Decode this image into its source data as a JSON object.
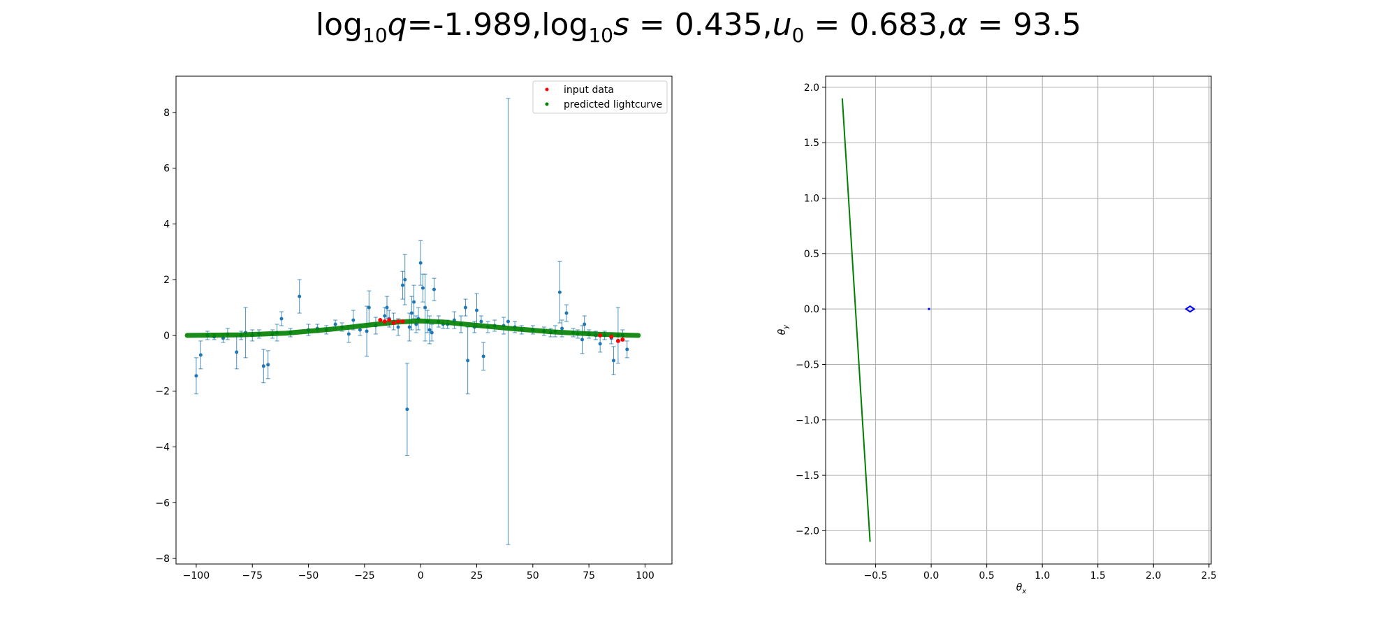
{
  "title": {
    "q_label": "log",
    "q_sub": "10",
    "q_var": "q",
    "q_rest": "=-1.989,",
    "s_label": "log",
    "s_sub": "10",
    "s_var": "s",
    "s_rest": " = 0.435,",
    "u_var": "u",
    "u_sub": "0",
    "u_rest": " = 0.683,",
    "alpha_var": "α",
    "alpha_rest": " = 93.5"
  },
  "colors": {
    "errorbar": "#1f77b4",
    "input_data": "#ff0000",
    "predicted": "#008000",
    "trajectory": "#008000",
    "caustic": "#0000ff",
    "grid": "#b0b0b0"
  },
  "chart_data": [
    {
      "type": "scatter",
      "xlim": [
        -109,
        112
      ],
      "ylim": [
        -8.2,
        9.3
      ],
      "xticks": [
        -100,
        -75,
        -50,
        -25,
        0,
        25,
        50,
        75,
        100
      ],
      "yticks": [
        -8,
        -6,
        -4,
        -2,
        0,
        2,
        4,
        6,
        8
      ],
      "xtick_labels": [
        "−100",
        "−75",
        "−50",
        "−25",
        "0",
        "25",
        "50",
        "75",
        "100"
      ],
      "ytick_labels": [
        "−8",
        "−6",
        "−4",
        "−2",
        "0",
        "2",
        "4",
        "6",
        "8"
      ],
      "grid": false,
      "legend": "top-right",
      "legend_entries": [
        "input data",
        "predicted lightcurve"
      ],
      "series": [
        {
          "name": "input data",
          "points": [
            [
              -18,
              0.55
            ],
            [
              -16,
              0.5
            ],
            [
              -14,
              0.55
            ],
            [
              -12,
              0.45
            ],
            [
              -10,
              0.5
            ],
            [
              -8,
              0.5
            ],
            [
              80,
              0.0
            ],
            [
              85,
              -0.05
            ],
            [
              88,
              -0.2
            ],
            [
              90,
              -0.15
            ]
          ]
        },
        {
          "name": "predicted lightcurve",
          "curve": [
            [
              -104,
              0.0
            ],
            [
              -80,
              0.02
            ],
            [
              -60,
              0.08
            ],
            [
              -40,
              0.22
            ],
            [
              -20,
              0.4
            ],
            [
              -10,
              0.48
            ],
            [
              0,
              0.52
            ],
            [
              10,
              0.48
            ],
            [
              20,
              0.4
            ],
            [
              40,
              0.25
            ],
            [
              60,
              0.12
            ],
            [
              80,
              0.04
            ],
            [
              97,
              0.0
            ]
          ]
        }
      ],
      "errorbars": [
        [
          -100,
          -1.45,
          0.65
        ],
        [
          -98,
          -0.7,
          0.5
        ],
        [
          -95,
          0.0,
          0.15
        ],
        [
          -92,
          -0.05,
          0.1
        ],
        [
          -88,
          -0.1,
          0.15
        ],
        [
          -86,
          0.05,
          0.2
        ],
        [
          -82,
          -0.6,
          0.6
        ],
        [
          -80,
          0.0,
          0.15
        ],
        [
          -78,
          0.1,
          0.9
        ],
        [
          -75,
          0.0,
          0.2
        ],
        [
          -72,
          0.05,
          0.15
        ],
        [
          -70,
          -1.1,
          0.6
        ],
        [
          -68,
          -1.05,
          0.5
        ],
        [
          -66,
          0.05,
          0.15
        ],
        [
          -64,
          0.1,
          0.3
        ],
        [
          -62,
          0.6,
          0.25
        ],
        [
          -58,
          0.1,
          0.15
        ],
        [
          -54,
          1.4,
          0.6
        ],
        [
          -50,
          0.2,
          0.2
        ],
        [
          -46,
          0.25,
          0.15
        ],
        [
          -42,
          0.2,
          0.15
        ],
        [
          -38,
          0.4,
          0.15
        ],
        [
          -35,
          0.3,
          0.15
        ],
        [
          -32,
          0.05,
          0.3
        ],
        [
          -30,
          0.55,
          0.35
        ],
        [
          -27,
          0.2,
          0.2
        ],
        [
          -24,
          0.15,
          0.9
        ],
        [
          -23,
          1.0,
          0.6
        ],
        [
          -20,
          0.35,
          0.3
        ],
        [
          -16,
          0.7,
          0.3
        ],
        [
          -15,
          1.0,
          0.4
        ],
        [
          -14,
          0.6,
          0.3
        ],
        [
          -12,
          0.5,
          0.3
        ],
        [
          -10,
          0.3,
          0.3
        ],
        [
          -8,
          1.8,
          0.5
        ],
        [
          -7,
          2.0,
          0.9
        ],
        [
          -6,
          -2.65,
          1.65
        ],
        [
          -5,
          0.3,
          0.5
        ],
        [
          -4,
          0.8,
          0.6
        ],
        [
          -3,
          1.2,
          0.6
        ],
        [
          -2,
          0.4,
          0.3
        ],
        [
          -1,
          0.6,
          0.4
        ],
        [
          0,
          2.6,
          0.8
        ],
        [
          1,
          1.7,
          0.5
        ],
        [
          2,
          1.0,
          1.2
        ],
        [
          3,
          0.5,
          0.4
        ],
        [
          4,
          0.2,
          0.5
        ],
        [
          5,
          0.1,
          0.3
        ],
        [
          6,
          1.65,
          0.4
        ],
        [
          8,
          0.5,
          0.2
        ],
        [
          10,
          0.4,
          0.15
        ],
        [
          12,
          0.4,
          0.15
        ],
        [
          15,
          0.55,
          0.3
        ],
        [
          18,
          0.4,
          0.3
        ],
        [
          20,
          1.0,
          0.3
        ],
        [
          21,
          -0.9,
          1.2
        ],
        [
          24,
          0.3,
          0.2
        ],
        [
          25,
          0.9,
          0.6
        ],
        [
          27,
          0.5,
          0.2
        ],
        [
          28,
          -0.75,
          0.5
        ],
        [
          30,
          0.3,
          0.2
        ],
        [
          33,
          0.35,
          0.2
        ],
        [
          37,
          0.35,
          0.3
        ],
        [
          39,
          0.5,
          8.0
        ],
        [
          42,
          0.3,
          0.2
        ],
        [
          45,
          0.2,
          0.15
        ],
        [
          50,
          0.2,
          0.15
        ],
        [
          55,
          0.15,
          0.15
        ],
        [
          58,
          0.1,
          0.15
        ],
        [
          60,
          0.15,
          0.2
        ],
        [
          62,
          1.55,
          1.1
        ],
        [
          63,
          0.25,
          0.3
        ],
        [
          65,
          0.8,
          0.3
        ],
        [
          68,
          0.1,
          0.15
        ],
        [
          70,
          0.05,
          0.15
        ],
        [
          72,
          -0.15,
          0.5
        ],
        [
          73,
          0.4,
          0.3
        ],
        [
          75,
          0.05,
          0.15
        ],
        [
          78,
          0.0,
          0.15
        ],
        [
          80,
          -0.3,
          0.3
        ],
        [
          82,
          0.0,
          0.15
        ],
        [
          85,
          -0.1,
          0.2
        ],
        [
          86,
          -0.9,
          0.5
        ],
        [
          88,
          0.0,
          1.0
        ],
        [
          90,
          0.0,
          0.2
        ],
        [
          92,
          -0.5,
          0.3
        ]
      ]
    },
    {
      "type": "line",
      "xlabel": "θ",
      "xlabel_sub": "x",
      "ylabel": "θ",
      "ylabel_sub": "y",
      "xlim": [
        -0.95,
        2.52
      ],
      "ylim": [
        -2.3,
        2.1
      ],
      "xticks": [
        -0.5,
        0.0,
        0.5,
        1.0,
        1.5,
        2.0,
        2.5
      ],
      "yticks": [
        -2.0,
        -1.5,
        -1.0,
        -0.5,
        0.0,
        0.5,
        1.0,
        1.5,
        2.0
      ],
      "xtick_labels": [
        "−0.5",
        "0.0",
        "0.5",
        "1.0",
        "1.5",
        "2.0",
        "2.5"
      ],
      "ytick_labels": [
        "−2.0",
        "−1.5",
        "−1.0",
        "−0.5",
        "0.0",
        "0.5",
        "1.0",
        "1.5",
        "2.0"
      ],
      "grid": true,
      "trajectory": [
        [
          -0.8,
          1.9
        ],
        [
          -0.55,
          -2.1
        ]
      ],
      "caustics": [
        [
          -0.02,
          0.0
        ],
        [
          2.33,
          0.0
        ]
      ]
    }
  ]
}
